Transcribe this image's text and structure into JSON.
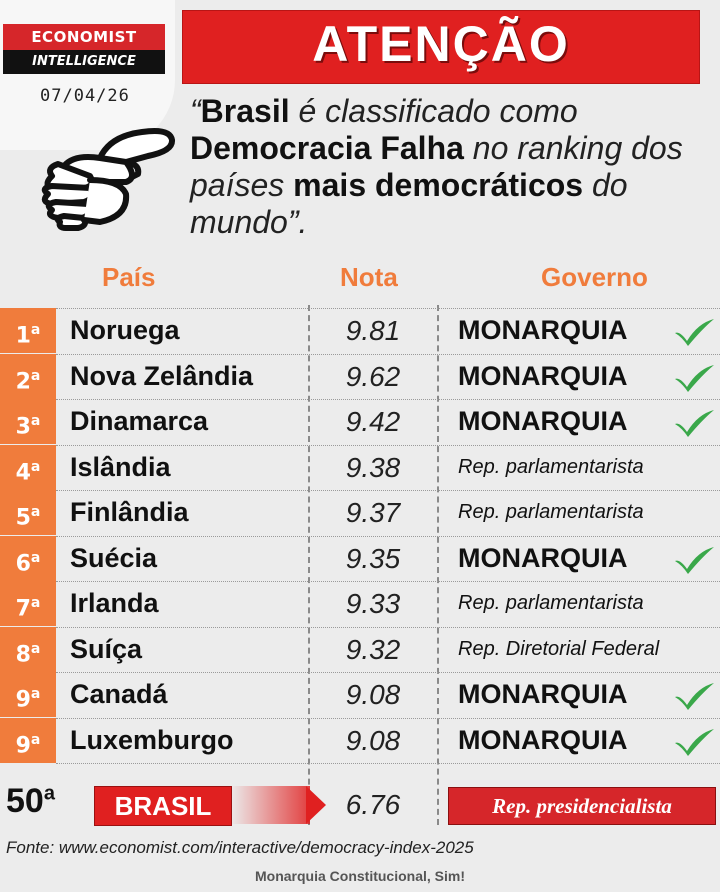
{
  "header": {
    "brand_line1": "ECONOMIST",
    "brand_line2": "INTELLIGENCE",
    "date": "07/04/26",
    "banner": "ATENÇÃO"
  },
  "quote": {
    "p1": "“",
    "b1": "Brasil",
    "p2": " é classificado como ",
    "b2": "Democracia Falha",
    "p3": " no ranking dos países ",
    "b3": "mais democráticos",
    "p4": " do mundo”."
  },
  "table": {
    "headers": {
      "country": "País",
      "score": "Nota",
      "government": "Governo"
    },
    "rows": [
      {
        "rank": "1",
        "suffix": "a",
        "country": "Noruega",
        "score": "9.81",
        "government": "MONARQUIA",
        "monarchy": true
      },
      {
        "rank": "2",
        "suffix": "a",
        "country": "Nova Zelândia",
        "score": "9.62",
        "government": "MONARQUIA",
        "monarchy": true
      },
      {
        "rank": "3",
        "suffix": "a",
        "country": "Dinamarca",
        "score": "9.42",
        "government": "MONARQUIA",
        "monarchy": true
      },
      {
        "rank": "4",
        "suffix": "a",
        "country": "Islândia",
        "score": "9.38",
        "government": "Rep. parlamentarista",
        "monarchy": false
      },
      {
        "rank": "5",
        "suffix": "a",
        "country": "Finlândia",
        "score": "9.37",
        "government": "Rep. parlamentarista",
        "monarchy": false
      },
      {
        "rank": "6",
        "suffix": "a",
        "country": "Suécia",
        "score": "9.35",
        "government": "MONARQUIA",
        "monarchy": true
      },
      {
        "rank": "7",
        "suffix": "a",
        "country": "Irlanda",
        "score": "9.33",
        "government": "Rep. parlamentarista",
        "monarchy": false
      },
      {
        "rank": "8",
        "suffix": "a",
        "country": "Suíça",
        "score": "9.32",
        "government": "Rep. Diretorial Federal",
        "monarchy": false
      },
      {
        "rank": "9",
        "suffix": "a",
        "country": "Canadá",
        "score": "9.08",
        "government": "MONARQUIA",
        "monarchy": true
      },
      {
        "rank": "9",
        "suffix": "a",
        "country": "Luxemburgo",
        "score": "9.08",
        "government": "MONARQUIA",
        "monarchy": true
      }
    ]
  },
  "brasil": {
    "rank": "50",
    "suffix": "a",
    "country": "BRASIL",
    "score": "6.76",
    "government": "Rep. presidencialista"
  },
  "source": "Fonte: www.economist.com/interactive/democracy-index-2025",
  "footer": "Monarquia Constitucional, Sim!",
  "colors": {
    "accent_orange": "#f07c3c",
    "accent_red": "#e02020",
    "check_green": "#3aa84a"
  }
}
